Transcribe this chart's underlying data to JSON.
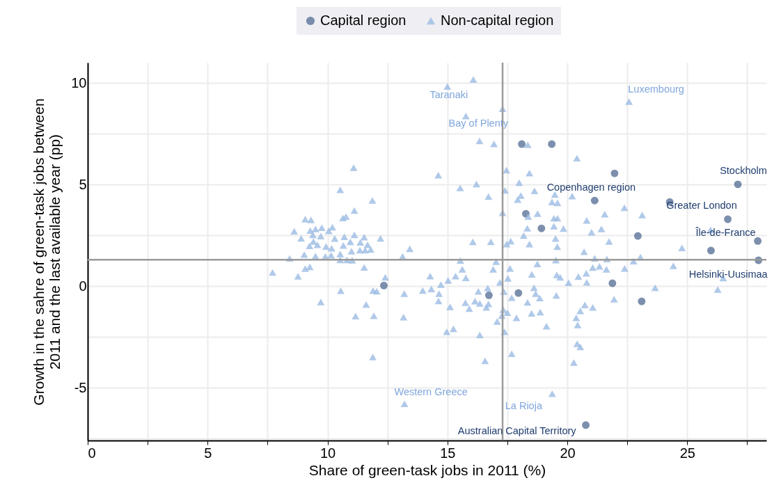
{
  "chart_data": {
    "type": "scatter",
    "xlabel": "Share of green-task jobs in 2011 (%)",
    "ylabel": "Growth in the sahre of green-task jobs between\n2011 and the last available year (pp)",
    "xlim": [
      0,
      28.3
    ],
    "ylim": [
      -7.6,
      11.0
    ],
    "xticks": [
      0,
      {
        "value": 2.5,
        "label": null
      },
      5,
      {
        "value": 7.5,
        "label": null
      },
      10,
      {
        "value": 12.5,
        "label": null
      },
      15,
      {
        "value": 17.5,
        "label": null
      },
      20,
      {
        "value": 22.5,
        "label": null
      },
      25,
      {
        "value": 27.5,
        "label": null
      }
    ],
    "yticks": [
      {
        "value": -7.5,
        "label": null
      },
      -5,
      {
        "value": -2.5,
        "label": null
      },
      0,
      {
        "value": 2.5,
        "label": null
      },
      5,
      {
        "value": 7.5,
        "label": null
      },
      10
    ],
    "grid": true,
    "legend": "top",
    "ref_lines": [
      {
        "axis": "x",
        "value": 17.3,
        "color": "#9a9a9a"
      },
      {
        "axis": "y",
        "value": 1.3,
        "color": "#9a9a9a"
      }
    ],
    "series": [
      {
        "name": "Capital region",
        "color": "#5b7399",
        "marker": "circle",
        "x": [
          12.35,
          16.73,
          17.96,
          18.1,
          19.35,
          21.97,
          18.27,
          18.92,
          21.14,
          22.94,
          23.1,
          21.88,
          24.27,
          27.11,
          26.69,
          27.94,
          25.99,
          27.97,
          20.77
        ],
        "values": [
          0.03,
          -0.45,
          -0.34,
          6.99,
          6.99,
          5.55,
          3.56,
          2.84,
          4.21,
          2.47,
          -0.75,
          0.14,
          4.14,
          5.01,
          3.29,
          2.22,
          1.75,
          1.27,
          -6.84
        ]
      },
      {
        "name": "Non-capital region",
        "color": "#9cbbe3",
        "marker": "triangle",
        "x": [
          11.09,
          14.62,
          10.53,
          11.87,
          11.12,
          10.64,
          10.77,
          9.07,
          9.31,
          8.61,
          9.28,
          9.5,
          9.76,
          10.05,
          10.2,
          8.9,
          9.39,
          9.72,
          10.3,
          10.7,
          11.12,
          11.53,
          12.21,
          9.25,
          9.41,
          9.58,
          9.94,
          10.17,
          10.66,
          10.95,
          11.37,
          11.67,
          11.0,
          11.35,
          11.57,
          11.8,
          9.03,
          9.5,
          9.91,
          10.15,
          10.53,
          13.43,
          8.42,
          10.53,
          10.81,
          11.03,
          13.13,
          11.53,
          7.71,
          9.07,
          9.26,
          8.77,
          12.41,
          14.28,
          15.34,
          15.03,
          14.73,
          10.55,
          11.9,
          12.05,
          13.2,
          13.97,
          14.33,
          14.65,
          14.63,
          15.11,
          9.72,
          11.61,
          11.17,
          11.93,
          13.17,
          14.97,
          15.25,
          11.89,
          16.08,
          15.0,
          17.3,
          15.77,
          22.57,
          16.34,
          16.94,
          18.35,
          20.4,
          17.46,
          18.42,
          15.53,
          16.21,
          17.99,
          17.4,
          16.71,
          18.06,
          18.63,
          17.93,
          19.48,
          19.36,
          19.59,
          20.2,
          22.38,
          23.12,
          17.3,
          18.37,
          18.76,
          19.44,
          19.59,
          20.81,
          21.56,
          18.33,
          19.44,
          19.84,
          21.01,
          21.42,
          18.18,
          19.51,
          21.74,
          16.06,
          16.81,
          17.47,
          17.64,
          18.42,
          19.58,
          20.7,
          15.54,
          17.03,
          15.62,
          16.91,
          17.61,
          18.75,
          19.52,
          21.14,
          21.65,
          22.76,
          23.05,
          15.77,
          17.19,
          17.52,
          18.52,
          19.56,
          19.7,
          20.05,
          20.46,
          20.79,
          20.81,
          21.06,
          21.34,
          21.63,
          22.39,
          16.29,
          16.68,
          17.35,
          17.68,
          18.61,
          18.68,
          18.85,
          19.54,
          18.34,
          15.75,
          15.91,
          16.15,
          16.35,
          16.62,
          16.71,
          17.33,
          17.5,
          17.27,
          17.88,
          18.51,
          18.87,
          17.07,
          19.13,
          20.37,
          20.54,
          20.73,
          21.06,
          21.95,
          20.43,
          16.35,
          17.38,
          20.41,
          20.54,
          17.68,
          16.57,
          20.27,
          19.37,
          13.21,
          25.97,
          24.78,
          24.42,
          23.66,
          26.5,
          26.27
        ],
        "values": [
          5.83,
          5.46,
          4.74,
          4.22,
          3.72,
          3.35,
          3.42,
          3.29,
          3.26,
          2.7,
          2.74,
          2.81,
          2.87,
          2.72,
          2.9,
          2.35,
          2.52,
          2.46,
          2.34,
          2.43,
          2.52,
          2.41,
          2.35,
          1.98,
          2.2,
          2.03,
          1.95,
          1.86,
          2.0,
          2.18,
          2.15,
          2.03,
          1.72,
          1.77,
          1.77,
          1.8,
          1.55,
          1.48,
          1.46,
          1.52,
          1.58,
          1.84,
          1.37,
          1.29,
          1.29,
          1.27,
          1.46,
          0.92,
          0.67,
          0.86,
          0.95,
          0.48,
          0.43,
          0.49,
          0.49,
          0.28,
          0.07,
          -0.23,
          -0.22,
          -0.25,
          -0.37,
          -0.22,
          -0.14,
          -0.37,
          -0.73,
          -1.02,
          -0.78,
          -0.9,
          -1.48,
          -1.46,
          -1.53,
          -2.25,
          -2.1,
          -3.49,
          10.17,
          9.83,
          8.73,
          8.37,
          9.08,
          7.15,
          7.0,
          6.96,
          6.3,
          5.71,
          5.56,
          4.83,
          5.02,
          5.09,
          4.71,
          4.41,
          4.46,
          4.69,
          4.26,
          4.51,
          4.14,
          4.1,
          4.43,
          3.86,
          3.5,
          3.61,
          3.42,
          3.57,
          3.34,
          3.34,
          3.23,
          3.54,
          2.85,
          2.95,
          2.83,
          2.65,
          2.81,
          2.49,
          2.34,
          2.2,
          2.18,
          2.18,
          2.07,
          2.21,
          2.07,
          1.94,
          1.69,
          1.26,
          1.2,
          0.83,
          0.83,
          0.87,
          1.09,
          1.28,
          1.37,
          1.33,
          1.23,
          1.43,
          0.41,
          0.18,
          0.38,
          0.58,
          0.55,
          0.43,
          0.17,
          0.47,
          0.63,
          0.18,
          0.91,
          0.97,
          0.83,
          0.87,
          -0.26,
          -0.1,
          -0.27,
          -0.57,
          -0.08,
          -0.37,
          -0.59,
          -0.46,
          -0.8,
          -0.82,
          -1.11,
          -0.74,
          -0.85,
          -1.05,
          -0.88,
          -1.16,
          -1.31,
          -1.45,
          -1.56,
          -1.34,
          -1.28,
          -1.74,
          -1.97,
          -1.56,
          -1.22,
          -0.93,
          -1.05,
          -0.65,
          -1.91,
          -2.4,
          -2.25,
          -2.84,
          -2.99,
          -3.33,
          -3.68,
          -3.76,
          -5.3,
          -5.79,
          2.77,
          1.88,
          1.0,
          -0.08,
          0.4,
          -0.17
        ]
      }
    ],
    "annotations": [
      {
        "text": "Taranaki",
        "x": 15.0,
        "y": 9.83
      },
      {
        "text": "Bay of Plenty",
        "x": 15.77,
        "y": 8.37
      },
      {
        "text": "Luxembourg",
        "x": 22.57,
        "y": 9.08
      },
      {
        "text": "Copenhagen region",
        "x": 21.14,
        "y": 4.21
      },
      {
        "text": "Stockholm",
        "x": 27.11,
        "y": 5.01
      },
      {
        "text": "Greater London",
        "x": 24.27,
        "y": 4.14
      },
      {
        "text": "Île-de-France",
        "x": 26.69,
        "y": 3.29
      },
      {
        "text": "Helsinki-Uusimaa",
        "x": 27.97,
        "y": 1.27
      },
      {
        "text": "Australian Capital Territory",
        "x": 20.77,
        "y": -6.84
      },
      {
        "text": "Western Greece",
        "x": 13.21,
        "y": -5.79
      },
      {
        "text": "La Rioja",
        "x": 19.37,
        "y": -5.3
      }
    ]
  }
}
